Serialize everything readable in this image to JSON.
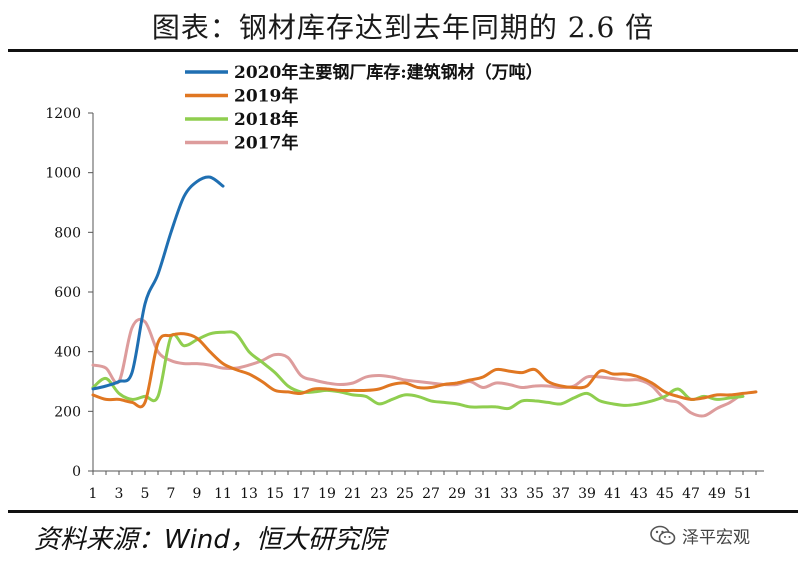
{
  "title": "图表：钢材库存达到去年同期的 2.6 倍",
  "source": "资料来源：Wind，恒大研究院",
  "watermark": "泽平宏观",
  "watermark_icon": "wechat-icon",
  "chart_data": {
    "type": "line",
    "xlabel": "",
    "ylabel": "",
    "ylim": [
      0,
      1200
    ],
    "yticks": [
      0,
      200,
      400,
      600,
      800,
      1000,
      1200
    ],
    "xlim": [
      1,
      52
    ],
    "xticks": [
      1,
      3,
      5,
      7,
      9,
      11,
      13,
      15,
      17,
      19,
      21,
      23,
      25,
      27,
      29,
      31,
      33,
      35,
      37,
      39,
      41,
      43,
      45,
      47,
      49,
      51
    ],
    "legend_position": "top",
    "grid": false,
    "series": [
      {
        "name": "2020年主要钢厂库存:建筑钢材（万吨）",
        "color": "#1f6fb2",
        "x": [
          1,
          2,
          3,
          4,
          5,
          6,
          7,
          8,
          9,
          10,
          11
        ],
        "values": [
          275,
          285,
          300,
          330,
          560,
          660,
          800,
          920,
          970,
          985,
          955
        ]
      },
      {
        "name": "2019年",
        "color": "#e07722",
        "x": [
          1,
          2,
          3,
          4,
          5,
          6,
          7,
          8,
          9,
          10,
          11,
          12,
          13,
          14,
          15,
          16,
          17,
          18,
          19,
          20,
          21,
          22,
          23,
          24,
          25,
          26,
          27,
          28,
          29,
          30,
          31,
          32,
          33,
          34,
          35,
          36,
          37,
          38,
          39,
          40,
          41,
          42,
          43,
          44,
          45,
          46,
          47,
          48,
          49,
          50,
          51,
          52
        ],
        "values": [
          255,
          240,
          240,
          230,
          230,
          430,
          455,
          460,
          445,
          400,
          360,
          340,
          325,
          300,
          270,
          265,
          260,
          275,
          275,
          270,
          270,
          270,
          275,
          290,
          295,
          280,
          280,
          290,
          295,
          305,
          315,
          340,
          335,
          330,
          340,
          300,
          285,
          280,
          285,
          335,
          325,
          325,
          315,
          295,
          265,
          250,
          240,
          245,
          255,
          255,
          260,
          265
        ]
      },
      {
        "name": "2018年",
        "color": "#8fce4f",
        "x": [
          1,
          2,
          3,
          4,
          5,
          6,
          7,
          8,
          9,
          10,
          11,
          12,
          13,
          14,
          15,
          16,
          17,
          18,
          19,
          20,
          21,
          22,
          23,
          24,
          25,
          26,
          27,
          28,
          29,
          30,
          31,
          32,
          33,
          34,
          35,
          36,
          37,
          38,
          39,
          40,
          41,
          42,
          43,
          44,
          45,
          46,
          47,
          48,
          49,
          50,
          51
        ],
        "values": [
          280,
          310,
          260,
          240,
          250,
          250,
          450,
          420,
          440,
          460,
          465,
          460,
          400,
          365,
          330,
          285,
          265,
          265,
          270,
          265,
          255,
          250,
          225,
          240,
          255,
          250,
          235,
          230,
          225,
          215,
          215,
          215,
          210,
          235,
          235,
          230,
          225,
          245,
          260,
          235,
          225,
          220,
          225,
          235,
          250,
          275,
          240,
          250,
          240,
          245,
          250
        ]
      },
      {
        "name": "2017年",
        "color": "#dd9c9c",
        "x": [
          1,
          2,
          3,
          4,
          5,
          6,
          7,
          8,
          9,
          10,
          11,
          12,
          13,
          14,
          15,
          16,
          17,
          18,
          19,
          20,
          21,
          22,
          23,
          24,
          25,
          26,
          27,
          28,
          29,
          30,
          31,
          32,
          33,
          34,
          35,
          36,
          37,
          38,
          39,
          40,
          41,
          42,
          43,
          44,
          45,
          46,
          47,
          48,
          49,
          50,
          51
        ],
        "values": [
          355,
          345,
          300,
          480,
          500,
          400,
          370,
          360,
          360,
          355,
          345,
          345,
          355,
          370,
          390,
          380,
          320,
          305,
          295,
          290,
          295,
          315,
          320,
          315,
          305,
          300,
          295,
          290,
          290,
          300,
          280,
          295,
          290,
          280,
          285,
          285,
          280,
          285,
          315,
          315,
          310,
          305,
          305,
          285,
          240,
          230,
          195,
          185,
          210,
          230,
          260
        ]
      }
    ]
  }
}
